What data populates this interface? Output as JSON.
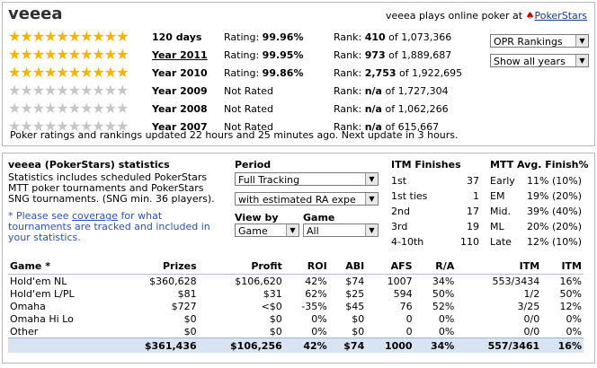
{
  "player": {
    "name": "veeea",
    "plays_text": "veeea plays online poker at",
    "site": "PokerStars"
  },
  "ratings": [
    {
      "stars": 10,
      "period": "120 days",
      "link": false,
      "rating_label": "Rating:",
      "rating": "99.96%",
      "rank_label": "Rank:",
      "rank": "410",
      "of": "of 1,073,366"
    },
    {
      "stars": 10,
      "period": "Year 2011",
      "link": true,
      "rating_label": "Rating:",
      "rating": "99.95%",
      "rank_label": "Rank:",
      "rank": "973",
      "of": "of 1,889,687"
    },
    {
      "stars": 10,
      "period": "Year 2010",
      "link": false,
      "rating_label": "Rating:",
      "rating": "99.86%",
      "rank_label": "Rank:",
      "rank": "2,753",
      "of": "of 1,922,695"
    },
    {
      "stars": 0,
      "period": "Year 2009",
      "link": false,
      "rating_label": "Not Rated",
      "rating": "",
      "rank_label": "Rank:",
      "rank": "n/a",
      "of": "of 1,727,304"
    },
    {
      "stars": 0,
      "period": "Year 2008",
      "link": false,
      "rating_label": "Not Rated",
      "rating": "",
      "rank_label": "Rank:",
      "rank": "n/a",
      "of": "of 1,062,266"
    },
    {
      "stars": 0,
      "period": "Year 2007",
      "link": false,
      "rating_label": "Not Rated",
      "rating": "",
      "rank_label": "Rank:",
      "rank": "n/a",
      "of": "of 615,667"
    }
  ],
  "selects": {
    "opr": "OPR Rankings",
    "years": "Show all years"
  },
  "updated_text": "Poker ratings and rankings updated 22 hours and 25 minutes ago. Next update in 3 hours.",
  "stats": {
    "title": "veeea (PokerStars) statistics",
    "desc": [
      "Statistics includes scheduled PokerStars",
      "MTT poker tournaments and PokerStars",
      "SNG tournaments. (SNG min. 36 players)."
    ],
    "note_pre": "* Please see ",
    "note_link": "coverage",
    "note_post": " for what",
    "note_lines": [
      "tournaments are tracked and included in",
      "your statistics."
    ],
    "period_label": "Period",
    "period_value": "Full Tracking",
    "ra_value": "with estimated RA expe",
    "viewby_label": "View by",
    "viewby_value": "Game",
    "game_label": "Game",
    "game_value": "All"
  },
  "itm": {
    "title": "ITM Finishes",
    "rows": [
      [
        "1st",
        "37"
      ],
      [
        "1st ties",
        "1"
      ],
      [
        "2nd",
        "17"
      ],
      [
        "3rd",
        "19"
      ],
      [
        "4-10th",
        "110"
      ]
    ]
  },
  "mtt": {
    "title": "MTT Avg. Finish%",
    "rows": [
      [
        "Early",
        "11% (10%)"
      ],
      [
        "EM",
        "19% (20%)"
      ],
      [
        "Mid.",
        "39% (40%)"
      ],
      [
        "ML",
        "20% (20%)"
      ],
      [
        "Late",
        "12% (10%)"
      ]
    ]
  },
  "games": {
    "headers": [
      "Game *",
      "Prizes",
      "Profit",
      "ROI",
      "ABI",
      "AFS",
      "R/A",
      "ITM",
      "ITM"
    ],
    "rows": [
      [
        "Hold'em NL",
        "$360,628",
        "$106,620",
        "42%",
        "$74",
        "1007",
        "34%",
        "553/3434",
        "16%"
      ],
      [
        "Hold'em L/PL",
        "$81",
        "$31",
        "62%",
        "$25",
        "594",
        "50%",
        "1/2",
        "50%"
      ],
      [
        "Omaha",
        "$727",
        "<$0",
        "-35%",
        "$45",
        "76",
        "52%",
        "3/25",
        "12%"
      ],
      [
        "Omaha Hi Lo",
        "$0",
        "$0",
        "0%",
        "$0",
        "0",
        "0%",
        "0/0",
        "0%"
      ],
      [
        "Other",
        "$0",
        "$0",
        "0%",
        "$0",
        "0",
        "0%",
        "0/0",
        "0%"
      ]
    ],
    "total": [
      "",
      "$361,436",
      "$106,256",
      "42%",
      "$74",
      "1000",
      "34%",
      "557/3461",
      "16%"
    ]
  }
}
